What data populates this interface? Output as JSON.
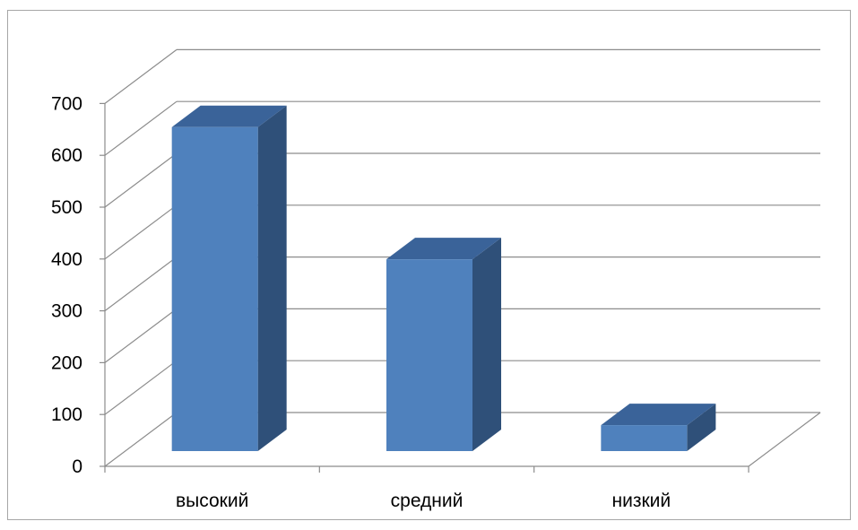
{
  "chart_data": {
    "type": "bar",
    "categories": [
      "высокий",
      "средний",
      "низкий"
    ],
    "values": [
      625,
      370,
      50
    ],
    "title": "",
    "xlabel": "",
    "ylabel": "",
    "ylim": [
      0,
      700
    ],
    "yticks": [
      0,
      100,
      200,
      300,
      400,
      500,
      600,
      700
    ],
    "grid": true,
    "legend": "none",
    "colors": {
      "bar_front": "#4F81BD",
      "bar_side": "#2F5079",
      "bar_top": "#3A6399",
      "grid": "#8C8C8C",
      "frame": "#A6A6A6"
    }
  }
}
